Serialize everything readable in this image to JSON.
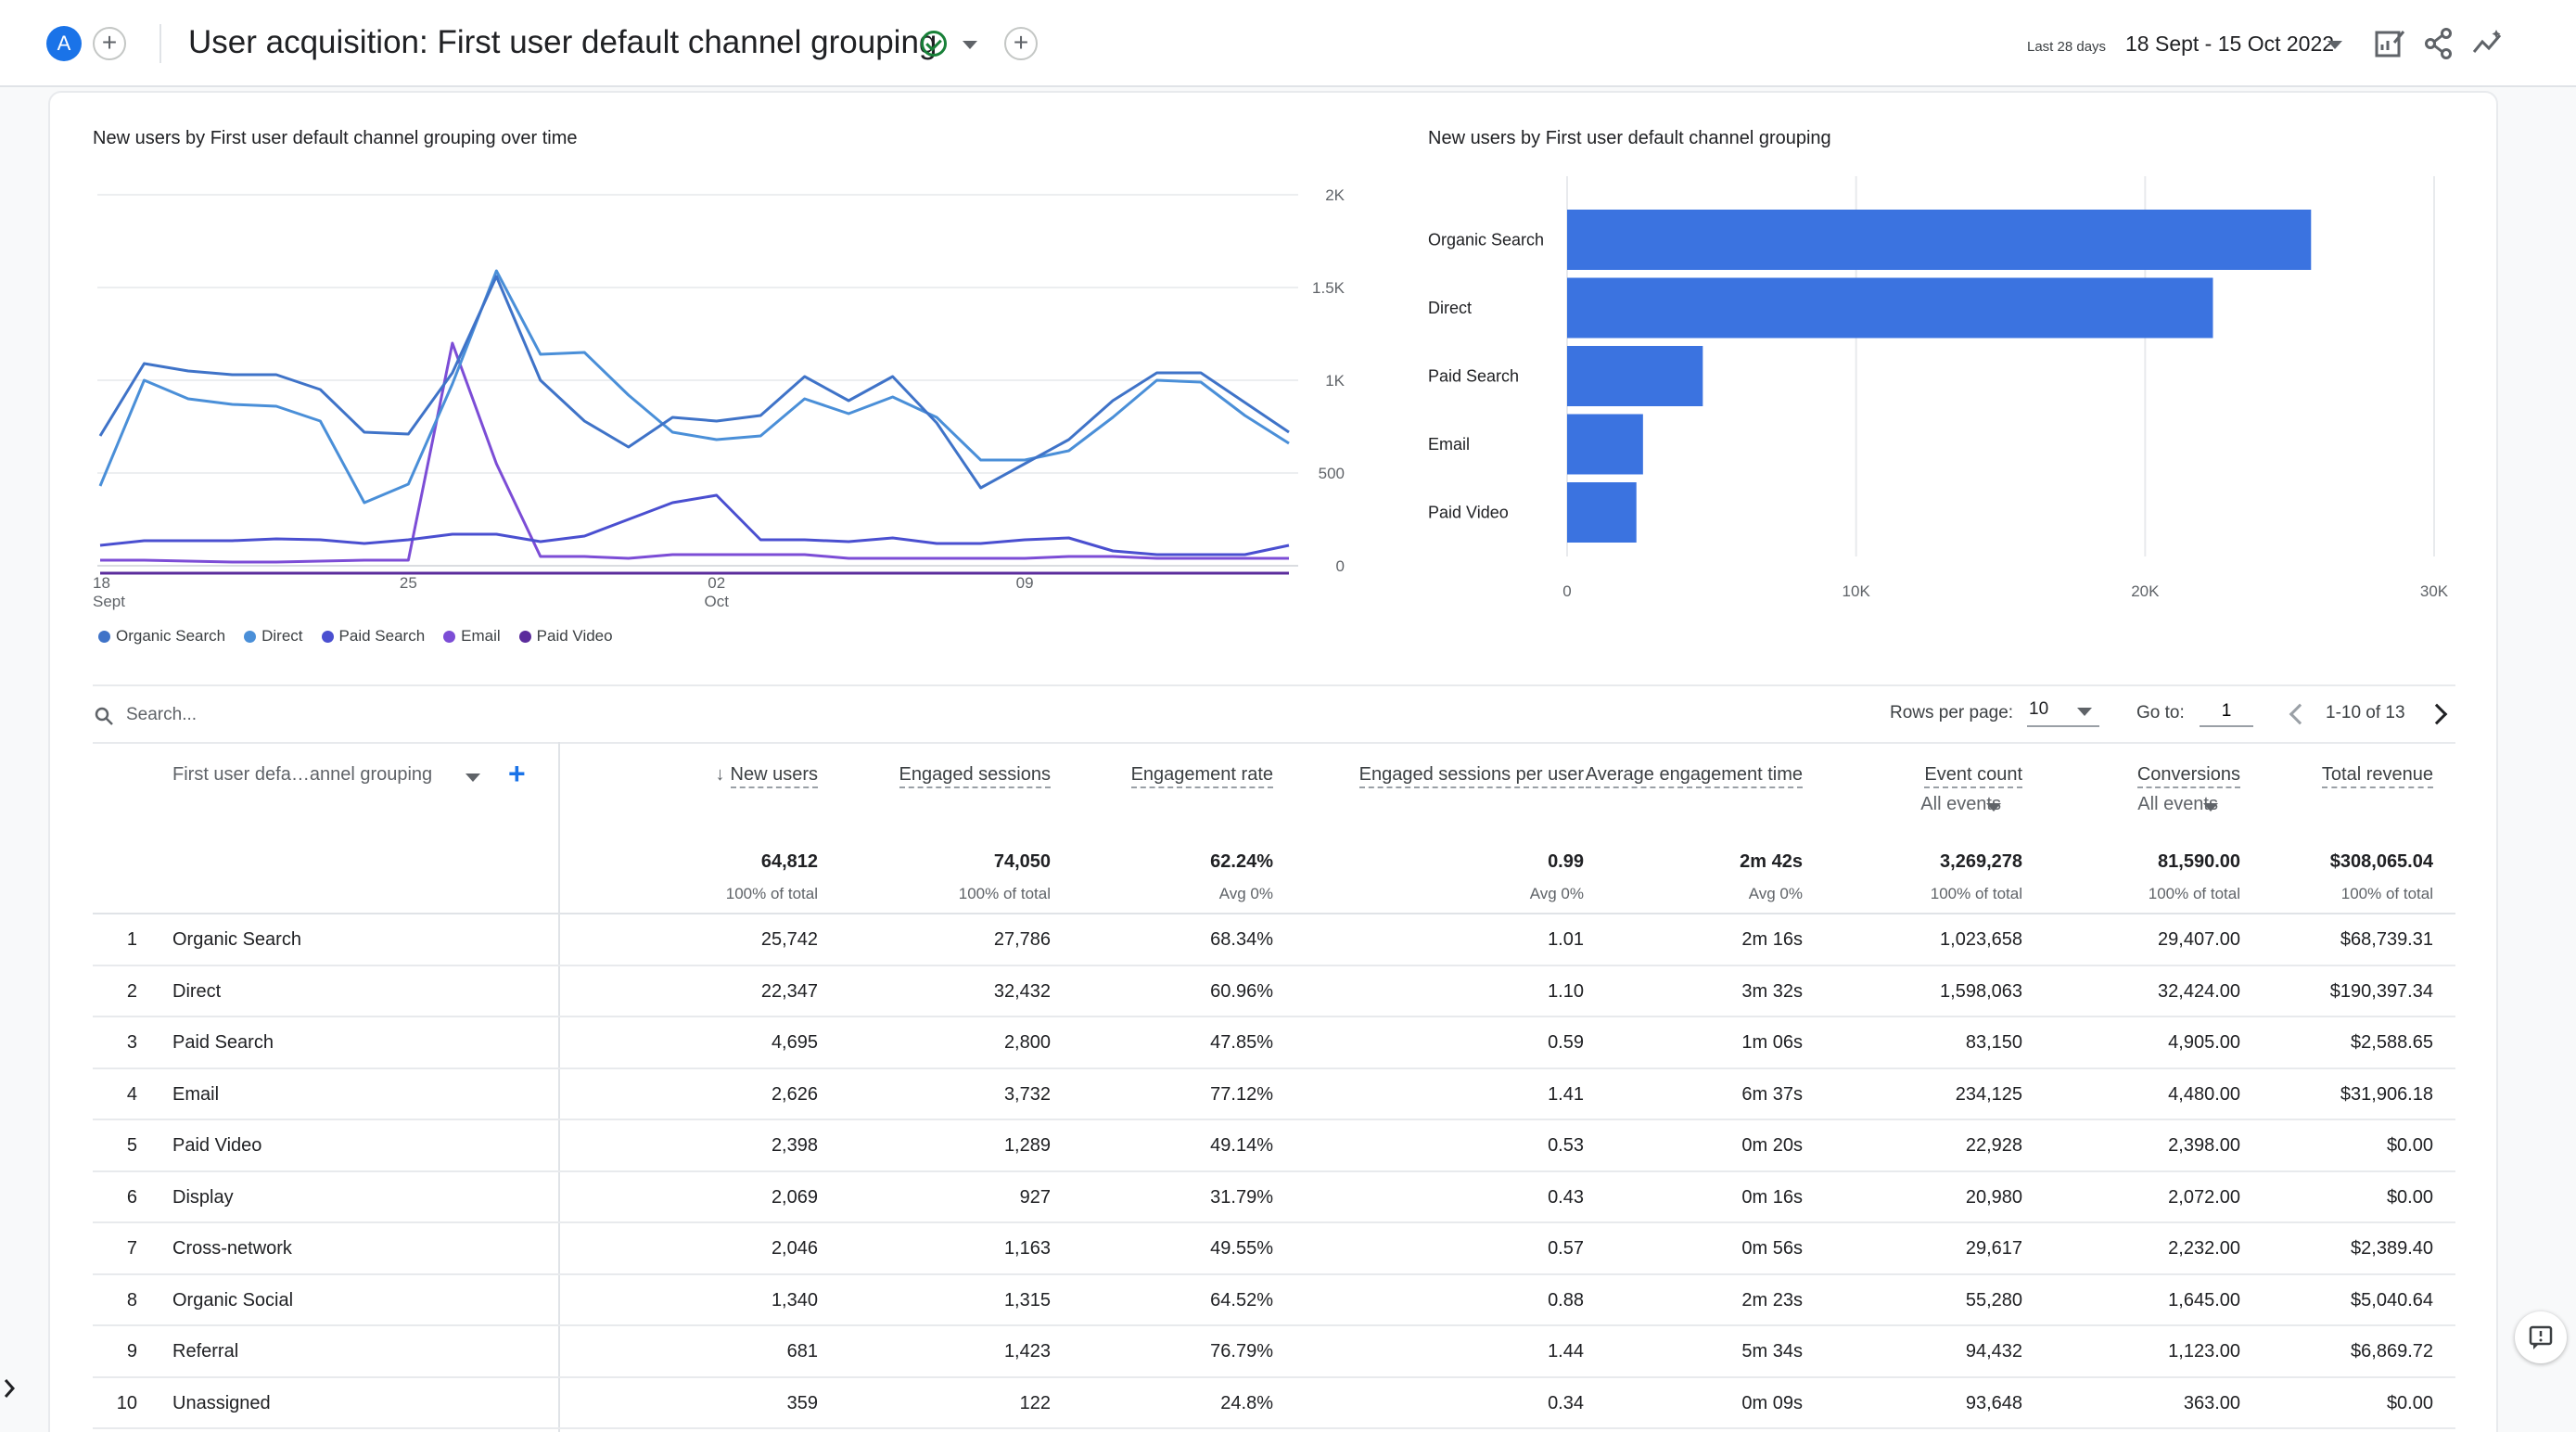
{
  "header": {
    "avatar_letter": "A",
    "title": "User acquisition: First user default channel grouping",
    "date_label": "Last 28 days",
    "date_range": "18 Sept - 15 Oct 2022",
    "icons": [
      "add-comparison-icon",
      "status-check-icon",
      "add-icon",
      "customize-report-icon",
      "share-icon",
      "insights-icon"
    ]
  },
  "line_chart": {
    "title": "New users by First user default channel grouping over time",
    "y_ticks": [
      "2K",
      "1.5K",
      "1K",
      "500",
      "0"
    ],
    "x_ticks": [
      {
        "day": "18",
        "month": "Sept"
      },
      {
        "day": "25",
        "month": ""
      },
      {
        "day": "02",
        "month": "Oct"
      },
      {
        "day": "09",
        "month": ""
      }
    ]
  },
  "bar_chart": {
    "title": "New users by First user default channel grouping",
    "x_ticks": [
      "0",
      "10K",
      "20K",
      "30K"
    ]
  },
  "legend": [
    {
      "label": "Organic Search",
      "color": "#3f73c8"
    },
    {
      "label": "Direct",
      "color": "#4a8fd8"
    },
    {
      "label": "Paid Search",
      "color": "#4a4fd0"
    },
    {
      "label": "Email",
      "color": "#7c4dd6"
    },
    {
      "label": "Paid Video",
      "color": "#5b2c9c"
    }
  ],
  "chart_data": [
    {
      "type": "line",
      "title": "New users by First user default channel grouping over time",
      "x": [
        "18 Sept",
        "19",
        "20",
        "21",
        "22",
        "23",
        "24",
        "25",
        "26",
        "27",
        "28",
        "29",
        "30",
        "01 Oct",
        "02",
        "03",
        "04",
        "05",
        "06",
        "07",
        "08",
        "09",
        "10",
        "11",
        "12",
        "13",
        "14",
        "15"
      ],
      "ylim": [
        0,
        2000
      ],
      "series": [
        {
          "name": "Organic Search",
          "values": [
            700,
            1090,
            1050,
            1030,
            1030,
            950,
            720,
            710,
            1040,
            1560,
            1000,
            780,
            640,
            800,
            780,
            810,
            1020,
            890,
            1020,
            770,
            420,
            550,
            680,
            890,
            1040,
            1040,
            880,
            720
          ]
        },
        {
          "name": "Direct",
          "values": [
            430,
            1000,
            900,
            870,
            860,
            780,
            340,
            440,
            980,
            1590,
            1140,
            1150,
            920,
            720,
            680,
            700,
            900,
            820,
            910,
            800,
            570,
            570,
            620,
            800,
            1000,
            990,
            810,
            660
          ]
        },
        {
          "name": "Paid Search",
          "values": [
            110,
            135,
            135,
            135,
            145,
            140,
            120,
            140,
            170,
            170,
            130,
            160,
            250,
            340,
            380,
            140,
            140,
            130,
            150,
            120,
            120,
            140,
            150,
            80,
            60,
            60,
            60,
            110
          ]
        },
        {
          "name": "Email",
          "values": [
            30,
            30,
            25,
            20,
            20,
            25,
            30,
            30,
            1200,
            550,
            50,
            50,
            40,
            60,
            60,
            60,
            60,
            40,
            40,
            40,
            40,
            40,
            50,
            50,
            40,
            40,
            40,
            40
          ]
        },
        {
          "name": "Paid Video",
          "values": [
            -40,
            -40,
            -40,
            -40,
            -40,
            -40,
            -40,
            -40,
            -40,
            -40,
            -40,
            -40,
            -40,
            -40,
            -40,
            -40,
            -40,
            -40,
            -40,
            -40,
            -40,
            -40,
            -40,
            -40,
            -40,
            -40,
            -40,
            -40
          ]
        }
      ]
    },
    {
      "type": "bar",
      "title": "New users by First user default channel grouping",
      "categories": [
        "Organic Search",
        "Direct",
        "Paid Search",
        "Email",
        "Paid Video"
      ],
      "values": [
        25742,
        22347,
        4695,
        2626,
        2398
      ],
      "xlim": [
        0,
        30000
      ]
    }
  ],
  "table_controls": {
    "search_placeholder": "Search...",
    "rows_per_page_label": "Rows per page:",
    "rows_per_page": "10",
    "goto_label": "Go to:",
    "goto_value": "1",
    "range": "1-10 of 13"
  },
  "table": {
    "dimension_header": "First user defa…annel grouping",
    "columns": [
      {
        "label": "New users",
        "sub": "",
        "total": "64,812",
        "total_sub": "100% of total"
      },
      {
        "label": "Engaged sessions",
        "sub": "",
        "total": "74,050",
        "total_sub": "100% of total"
      },
      {
        "label": "Engagement rate",
        "sub": "",
        "total": "62.24%",
        "total_sub": "Avg 0%"
      },
      {
        "label": "Engaged sessions per user",
        "sub": "",
        "total": "0.99",
        "total_sub": "Avg 0%"
      },
      {
        "label": "Average engagement time",
        "sub": "",
        "total": "2m 42s",
        "total_sub": "Avg 0%"
      },
      {
        "label": "Event count",
        "sub": "All events",
        "total": "3,269,278",
        "total_sub": "100% of total"
      },
      {
        "label": "Conversions",
        "sub": "All events",
        "total": "81,590.00",
        "total_sub": "100% of total"
      },
      {
        "label": "Total revenue",
        "sub": "",
        "total": "$308,065.04",
        "total_sub": "100% of total"
      }
    ],
    "rows": [
      {
        "idx": "1",
        "name": "Organic Search",
        "cells": [
          "25,742",
          "27,786",
          "68.34%",
          "1.01",
          "2m 16s",
          "1,023,658",
          "29,407.00",
          "$68,739.31"
        ]
      },
      {
        "idx": "2",
        "name": "Direct",
        "cells": [
          "22,347",
          "32,432",
          "60.96%",
          "1.10",
          "3m 32s",
          "1,598,063",
          "32,424.00",
          "$190,397.34"
        ]
      },
      {
        "idx": "3",
        "name": "Paid Search",
        "cells": [
          "4,695",
          "2,800",
          "47.85%",
          "0.59",
          "1m 06s",
          "83,150",
          "4,905.00",
          "$2,588.65"
        ]
      },
      {
        "idx": "4",
        "name": "Email",
        "cells": [
          "2,626",
          "3,732",
          "77.12%",
          "1.41",
          "6m 37s",
          "234,125",
          "4,480.00",
          "$31,906.18"
        ]
      },
      {
        "idx": "5",
        "name": "Paid Video",
        "cells": [
          "2,398",
          "1,289",
          "49.14%",
          "0.53",
          "0m 20s",
          "22,928",
          "2,398.00",
          "$0.00"
        ]
      },
      {
        "idx": "6",
        "name": "Display",
        "cells": [
          "2,069",
          "927",
          "31.79%",
          "0.43",
          "0m 16s",
          "20,980",
          "2,072.00",
          "$0.00"
        ]
      },
      {
        "idx": "7",
        "name": "Cross-network",
        "cells": [
          "2,046",
          "1,163",
          "49.55%",
          "0.57",
          "0m 56s",
          "29,617",
          "2,232.00",
          "$2,389.40"
        ]
      },
      {
        "idx": "8",
        "name": "Organic Social",
        "cells": [
          "1,340",
          "1,315",
          "64.52%",
          "0.88",
          "2m 23s",
          "55,280",
          "1,645.00",
          "$5,040.64"
        ]
      },
      {
        "idx": "9",
        "name": "Referral",
        "cells": [
          "681",
          "1,423",
          "76.79%",
          "1.44",
          "5m 34s",
          "94,432",
          "1,123.00",
          "$6,869.72"
        ]
      },
      {
        "idx": "10",
        "name": "Unassigned",
        "cells": [
          "359",
          "122",
          "24.8%",
          "0.34",
          "0m 09s",
          "93,648",
          "363.00",
          "$0.00"
        ]
      }
    ]
  }
}
